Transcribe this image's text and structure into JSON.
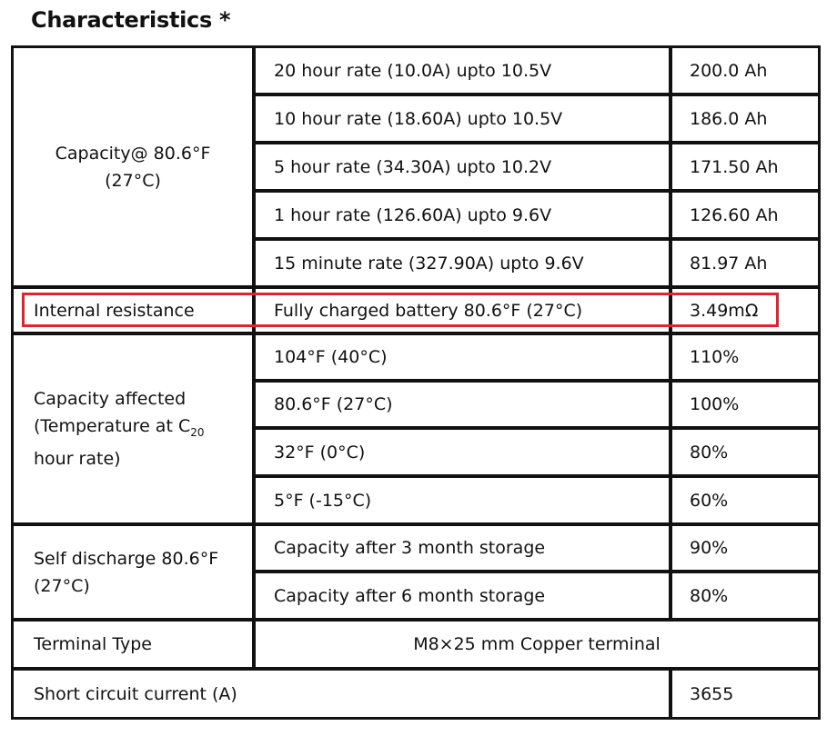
{
  "title": "Characteristics *",
  "highlight_color": "#e0242e",
  "capacity": {
    "label_line1": "Capacity@ 80.6°F",
    "label_line2": "(27°C)",
    "rows": [
      {
        "desc": "20 hour rate (10.0A) upto 10.5V",
        "value": "200.0 Ah"
      },
      {
        "desc": "10 hour rate (18.60A) upto 10.5V",
        "value": "186.0 Ah"
      },
      {
        "desc": "5 hour rate (34.30A) upto 10.2V",
        "value": "171.50 Ah"
      },
      {
        "desc": "1 hour rate (126.60A) upto 9.6V",
        "value": "126.60 Ah"
      },
      {
        "desc": "15 minute rate (327.90A) upto 9.6V",
        "value": "81.97 Ah"
      }
    ]
  },
  "internal_resistance": {
    "label": "Internal resistance",
    "desc": "Fully charged battery 80.6°F (27°C)",
    "value": "3.49mΩ"
  },
  "capacity_affected": {
    "label_line1": "Capacity affected",
    "label_line2_pre": "(Temperature at C",
    "label_line2_sub": "20",
    "label_line3": "hour rate)",
    "rows": [
      {
        "desc": "104°F (40°C)",
        "value": "110%"
      },
      {
        "desc": "80.6°F (27°C)",
        "value": "100%"
      },
      {
        "desc": "32°F (0°C)",
        "value": "80%"
      },
      {
        "desc": "5°F (-15°C)",
        "value": "60%"
      }
    ]
  },
  "self_discharge": {
    "label_line1": "Self discharge 80.6°F",
    "label_line2": "(27°C)",
    "rows": [
      {
        "desc": "Capacity after 3 month storage",
        "value": "90%"
      },
      {
        "desc": "Capacity after 6 month storage",
        "value": "80%"
      }
    ]
  },
  "terminal": {
    "label": "Terminal Type",
    "value": "M8×25 mm Copper terminal"
  },
  "short_circuit": {
    "label": "Short circuit current (A)",
    "value": "3655"
  }
}
